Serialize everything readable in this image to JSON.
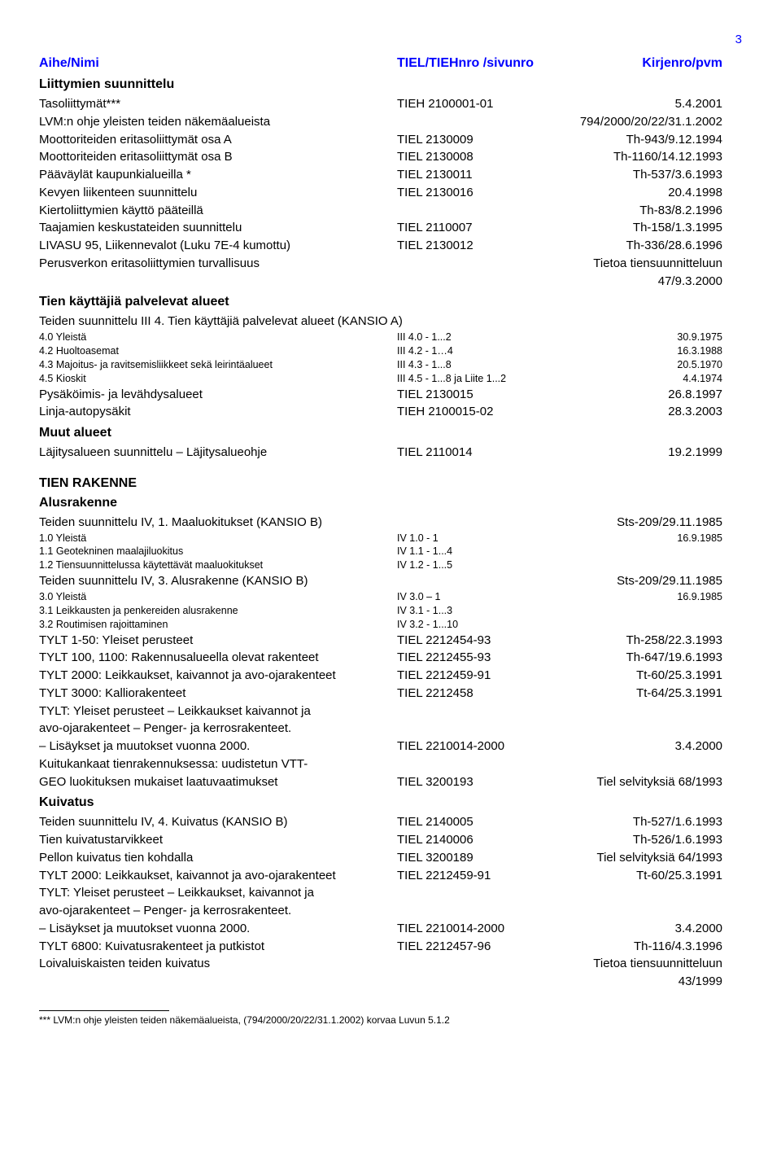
{
  "page_number": "3",
  "header": {
    "col1": "Aihe/Nimi",
    "col2": "TIEL/TIEHnro /sivunro",
    "col3": "Kirjenro/pvm"
  },
  "s1_title": "Liittymien suunnittelu",
  "s1": [
    {
      "c1": "Tasoliittymät***",
      "c2": "TIEH 2100001-01",
      "c3": "5.4.2001"
    },
    {
      "c1": "LVM:n ohje yleisten teiden näkemäalueista",
      "c2": "",
      "c3": "794/2000/20/22/31.1.2002"
    },
    {
      "c1": "Moottoriteiden eritasoliittymät osa A",
      "c2": "TIEL 2130009",
      "c3": "Th-943/9.12.1994"
    },
    {
      "c1": "Moottoriteiden eritasoliittymät osa B",
      "c2": "TIEL 2130008",
      "c3": "Th-1160/14.12.1993"
    },
    {
      "c1": "Pääväylät kaupunkialueilla *",
      "c2": "TIEL 2130011",
      "c3": "Th-537/3.6.1993"
    },
    {
      "c1": "Kevyen liikenteen suunnittelu",
      "c2": "TIEL 2130016",
      "c3": "20.4.1998"
    },
    {
      "c1": "Kiertoliittymien käyttö pääteillä",
      "c2": "",
      "c3": "Th-83/8.2.1996"
    },
    {
      "c1": "Taajamien keskustateiden suunnittelu",
      "c2": "TIEL 2110007",
      "c3": "Th-158/1.3.1995"
    },
    {
      "c1": "LIVASU 95, Liikennevalot (Luku 7E-4 kumottu)",
      "c2": "TIEL 2130012",
      "c3": "Th-336/28.6.1996"
    },
    {
      "c1": "Perusverkon eritasoliittymien turvallisuus",
      "c2": "",
      "c3": "Tietoa tiensuunnitteluun 47/9.3.2000"
    }
  ],
  "s2_title": "Tien käyttäjiä palvelevat alueet",
  "s2_sub": "Teiden suunnittelu III  4. Tien käyttäjiä palvelevat alueet (KANSIO A)",
  "s2_small": [
    {
      "c1": "4.0  Yleistä",
      "c2": "III 4.0 - 1...2",
      "c3": "30.9.1975"
    },
    {
      "c1": "4.2  Huoltoasemat",
      "c2": "III 4.2 - 1…4",
      "c3": "16.3.1988"
    },
    {
      "c1": "4.3   Majoitus- ja ravitsemisliikkeet sekä leirintäalueet",
      "c2": "III 4.3 - 1...8",
      "c3": "20.5.1970"
    },
    {
      "c1": "4.5  Kioskit",
      "c2": "III 4.5 - 1...8 ja Liite 1...2",
      "c3": "4.4.1974"
    }
  ],
  "s2_rows": [
    {
      "c1": "Pysäköimis- ja levähdysalueet",
      "c2": "TIEL 2130015",
      "c3": "26.8.1997"
    },
    {
      "c1": "Linja-autopysäkit",
      "c2": "TIEH 2100015-02",
      "c3": "28.3.2003"
    }
  ],
  "s3_title": "Muut alueet",
  "s3": [
    {
      "c1": "Läjitysalueen suunnittelu – Läjitysalueohje",
      "c2": "TIEL 2110014",
      "c3": "19.2.1999"
    }
  ],
  "s4_title": "TIEN RAKENNE",
  "s5_title": "Alusrakenne",
  "s5_line1": {
    "c1": "Teiden suunnittelu IV, 1. Maaluokitukset (KANSIO B)",
    "c2": "",
    "c3": "Sts-209/29.11.1985"
  },
  "s5_small1": [
    {
      "c1": "1.0  Yleistä",
      "c2": "IV 1.0 - 1",
      "c3": "16.9.1985"
    },
    {
      "c1": "1.1  Geotekninen maalajiluokitus",
      "c2": "IV 1.1 - 1...4",
      "c3": ""
    },
    {
      "c1": "1.2  Tiensuunnittelussa käytettävät maaluokitukset",
      "c2": "IV 1.2 - 1...5",
      "c3": ""
    }
  ],
  "s5_line2": {
    "c1": "Teiden suunnittelu IV, 3. Alusrakenne (KANSIO B)",
    "c2": "",
    "c3": "Sts-209/29.11.1985"
  },
  "s5_small2": [
    {
      "c1": "3.0  Yleistä",
      "c2": "IV 3.0 – 1",
      "c3": "16.9.1985"
    },
    {
      "c1": "3.1  Leikkausten ja penkereiden alusrakenne",
      "c2": "IV 3.1 - 1...3",
      "c3": ""
    },
    {
      "c1": "3.2  Routimisen rajoittaminen",
      "c2": "IV 3.2 - 1...10",
      "c3": ""
    }
  ],
  "s5_rows": [
    {
      "c1": "TYLT 1-50: Yleiset perusteet",
      "c2": "TIEL 2212454-93",
      "c3": "Th-258/22.3.1993"
    },
    {
      "c1": "TYLT 100, 1100: Rakennusalueella olevat rakenteet",
      "c2": "TIEL 2212455-93",
      "c3": "Th-647/19.6.1993"
    },
    {
      "c1": "TYLT 2000: Leikkaukset, kaivannot ja avo-ojarakenteet",
      "c2": "TIEL 2212459-91",
      "c3": "Tt-60/25.3.1991"
    },
    {
      "c1": "TYLT 3000: Kalliorakenteet",
      "c2": "TIEL 2212458",
      "c3": "Tt-64/25.3.1991"
    },
    {
      "c1": "TYLT: Yleiset perusteet – Leikkaukset kaivannot ja",
      "c2": "",
      "c3": ""
    },
    {
      "c1": "avo-ojarakenteet – Penger- ja kerrosrakenteet.",
      "c2": "",
      "c3": ""
    },
    {
      "c1": "– Lisäykset ja muutokset vuonna 2000.",
      "c2": "TIEL 2210014-2000",
      "c3": "3.4.2000"
    },
    {
      "c1": "Kuitukankaat tienrakennuksessa: uudistetun VTT-",
      "c2": "",
      "c3": ""
    },
    {
      "c1": "GEO luokituksen mukaiset laatuvaatimukset",
      "c2": "TIEL 3200193",
      "c3": "Tiel selvityksiä 68/1993"
    }
  ],
  "s6_title": "Kuivatus",
  "s6": [
    {
      "c1": "Teiden suunnittelu IV, 4. Kuivatus (KANSIO B)",
      "c2": "TIEL 2140005",
      "c3": "Th-527/1.6.1993"
    },
    {
      "c1": "Tien kuivatustarvikkeet",
      "c2": "TIEL 2140006",
      "c3": "Th-526/1.6.1993"
    },
    {
      "c1": "Pellon kuivatus tien kohdalla",
      "c2": "TIEL 3200189",
      "c3": "Tiel selvityksiä 64/1993"
    },
    {
      "c1": "TYLT 2000: Leikkaukset, kaivannot ja avo-ojarakenteet",
      "c2": "TIEL 2212459-91",
      "c3": "Tt-60/25.3.1991"
    },
    {
      "c1": "TYLT: Yleiset perusteet – Leikkaukset, kaivannot ja",
      "c2": "",
      "c3": ""
    },
    {
      "c1": "avo-ojarakenteet – Penger- ja kerrosrakenteet.",
      "c2": "",
      "c3": ""
    },
    {
      "c1": "– Lisäykset ja muutokset vuonna 2000.",
      "c2": "TIEL 2210014-2000",
      "c3": "3.4.2000"
    },
    {
      "c1": "TYLT 6800: Kuivatusrakenteet ja putkistot",
      "c2": "TIEL 2212457-96",
      "c3": "Th-116/4.3.1996"
    },
    {
      "c1": "Loivaluiskaisten teiden kuivatus",
      "c2": "",
      "c3": "Tietoa tiensuunnitteluun 43/1999"
    }
  ],
  "footnote": "*** LVM:n ohje yleisten teiden näkemäalueista, (794/2000/20/22/31.1.2002) korvaa Luvun 5.1.2"
}
